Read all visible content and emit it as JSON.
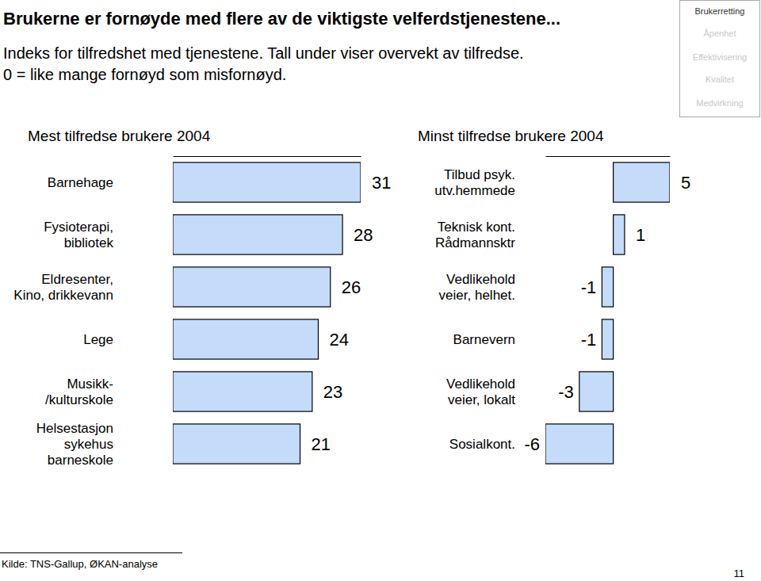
{
  "header": {
    "title": "Brukerne er fornøyde med flere av de viktigste velferdstjenestene...",
    "subtitle": [
      "Indeks for tilfredshet med tjenestene. Tall under viser overvekt av tilfredse.",
      "0 = like mange fornøyd som misfornøyd."
    ]
  },
  "nav": [
    "Brukerretting",
    "Åpenhet",
    "Effektivisering",
    "Kvalitet",
    "Medvirkning"
  ],
  "chart_data": [
    {
      "type": "bar",
      "orientation": "horizontal",
      "title": "Mest tilfredse brukere 2004",
      "categories": [
        "Barnehage",
        "Fysioterapi,\nbibliotek",
        "Eldresenter,\nKino, drikkevann",
        "Lege",
        "Musikk-\n/kulturskole",
        "Helsestasjon\nsykehus\nbarneskole"
      ],
      "values": [
        31,
        28,
        26,
        24,
        23,
        21
      ],
      "color": "#c4dbfa",
      "xlim": [
        0,
        31
      ],
      "xticks": [
        0,
        31
      ],
      "data_labels": true,
      "tick_labels": "y"
    },
    {
      "type": "bar",
      "orientation": "horizontal",
      "title": "Minst tilfredse brukere 2004",
      "categories": [
        "Tilbud psyk.\nutv.hemmede",
        "Teknisk kont.\nRådmannsktr",
        "Vedlikehold\nveier, helhet.",
        "Barnevern",
        "Vedlikehold\nveier, lokalt",
        "Sosialkont."
      ],
      "values": [
        5,
        1,
        -1,
        -1,
        -3,
        -6
      ],
      "color": "#c4dbfa",
      "xlim": [
        -6,
        5
      ],
      "xticks": [
        -6,
        0,
        5
      ],
      "data_labels": true,
      "tick_labels": "y"
    }
  ],
  "source": "Kilde: TNS-Gallup, ØKAN-analyse",
  "page_number": "11"
}
